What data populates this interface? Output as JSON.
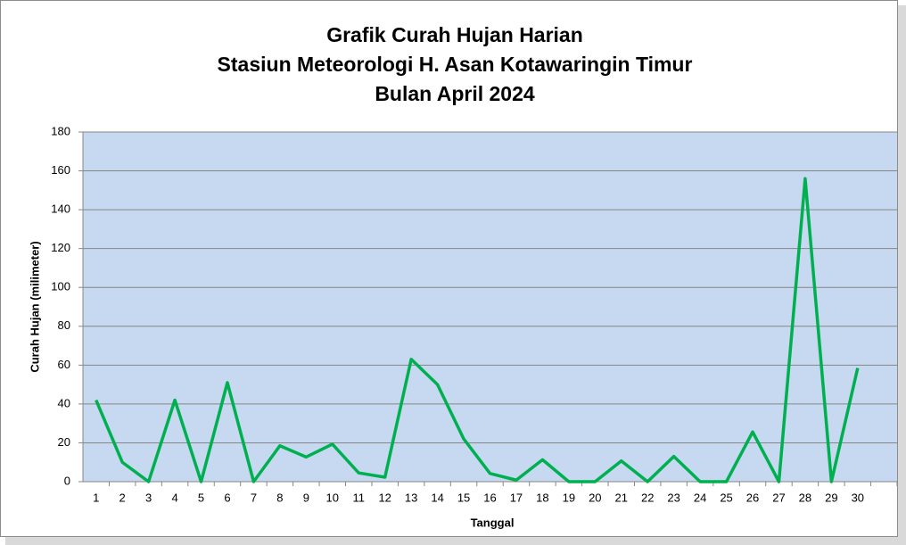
{
  "chart_data": {
    "type": "line",
    "title": [
      "Grafik Curah Hujan Harian",
      "Stasiun Meteorologi H. Asan Kotawaringin Timur",
      "Bulan April 2024"
    ],
    "x_label": "Tanggal",
    "y_label": "Curah Hujan (milimeter)",
    "categories": [
      "1",
      "2",
      "3",
      "4",
      "5",
      "6",
      "7",
      "8",
      "9",
      "10",
      "11",
      "12",
      "13",
      "14",
      "15",
      "16",
      "17",
      "18",
      "19",
      "20",
      "21",
      "22",
      "23",
      "24",
      "25",
      "26",
      "27",
      "28",
      "29",
      "30",
      null
    ],
    "series": [
      {
        "name": "Curah Hujan",
        "color": "#00b050",
        "values": [
          42,
          10,
          0,
          42,
          0,
          51,
          0,
          18.5,
          12.7,
          19.3,
          4.5,
          2.3,
          63,
          50,
          22,
          4.2,
          0.8,
          11.3,
          0,
          0,
          10.7,
          0,
          13,
          0,
          0,
          25.6,
          0,
          156,
          0,
          58.5,
          null
        ]
      }
    ],
    "ylim": [
      0,
      180
    ],
    "yticks": [
      0,
      20,
      40,
      60,
      80,
      100,
      120,
      140,
      160,
      180
    ],
    "grid": true,
    "plot_background": "#c6d9f1"
  }
}
